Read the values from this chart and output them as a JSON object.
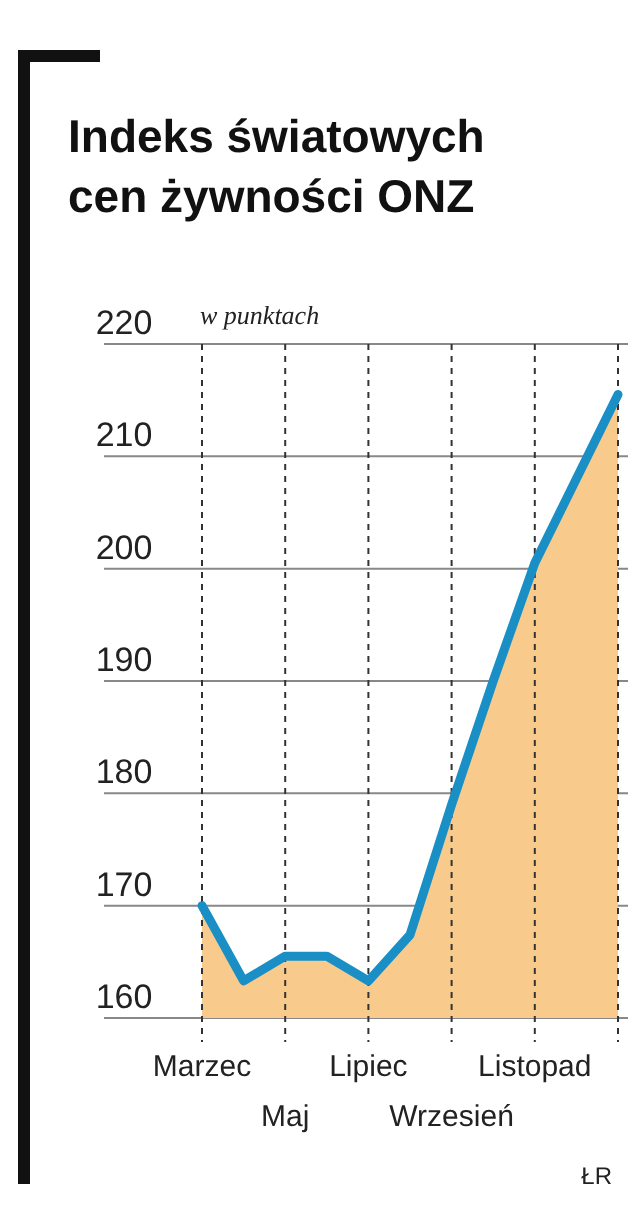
{
  "chart_data": {
    "type": "area",
    "title": "Indeks światowych cen żywności ONZ",
    "annotations": [
      "w punktach",
      "ŁR"
    ],
    "categories": [
      "Marzec",
      null,
      "Maj",
      null,
      "Lipiec",
      null,
      "Wrzesień",
      null,
      "Listopad",
      null,
      null
    ],
    "series": [
      {
        "color": "#f8cb8c",
        "values": [
          170,
          163.3,
          165.5,
          165.5,
          163.3,
          167.4,
          179,
          190,
          200.5,
          208,
          215.5
        ]
      },
      {
        "type": "line",
        "color": "#1a8fc6",
        "values": [
          170,
          163.3,
          165.5,
          165.5,
          163.3,
          167.4,
          179,
          190,
          200.5,
          208,
          215.5
        ]
      }
    ],
    "ylim": [
      160,
      220
    ],
    "yticks": [
      160,
      170,
      180,
      190,
      200,
      210,
      220
    ],
    "grid": true
  }
}
